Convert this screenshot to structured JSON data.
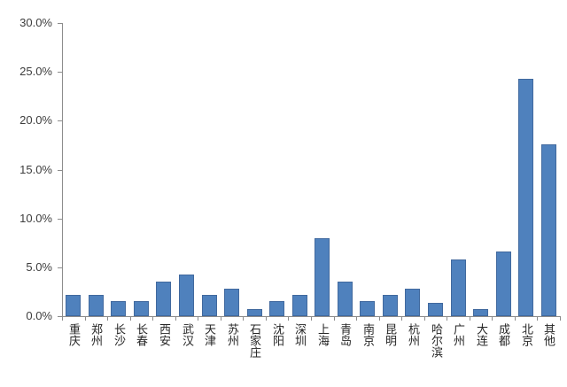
{
  "chart_data": {
    "type": "bar",
    "title": "",
    "xlabel": "",
    "ylabel": "",
    "categories": [
      "重庆",
      "郑州",
      "长沙",
      "长春",
      "西安",
      "武汉",
      "天津",
      "苏州",
      "石家庄",
      "沈阳",
      "深圳",
      "上海",
      "青岛",
      "南京",
      "昆明",
      "杭州",
      "哈尔滨",
      "广州",
      "大连",
      "成都",
      "北京",
      "其他"
    ],
    "values": [
      2.2,
      2.2,
      1.5,
      1.5,
      3.5,
      4.3,
      2.2,
      2.8,
      0.7,
      1.5,
      2.2,
      8.0,
      3.5,
      1.5,
      2.2,
      2.8,
      1.4,
      5.8,
      0.7,
      6.6,
      24.3,
      17.6
    ],
    "value_unit": "%",
    "ylim": [
      0,
      30
    ],
    "ytick_step": 5,
    "ytick_labels": [
      "0.0%",
      "5.0%",
      "10.0%",
      "15.0%",
      "20.0%",
      "25.0%",
      "30.0%"
    ],
    "grid": false,
    "legend": null,
    "bar_color": "#4f81bd",
    "bar_border_color": "#41699e",
    "axis_color": "#8c8c8c",
    "ytick_label_color": "#3d3d3d",
    "xtick_label_color": "#262626"
  }
}
